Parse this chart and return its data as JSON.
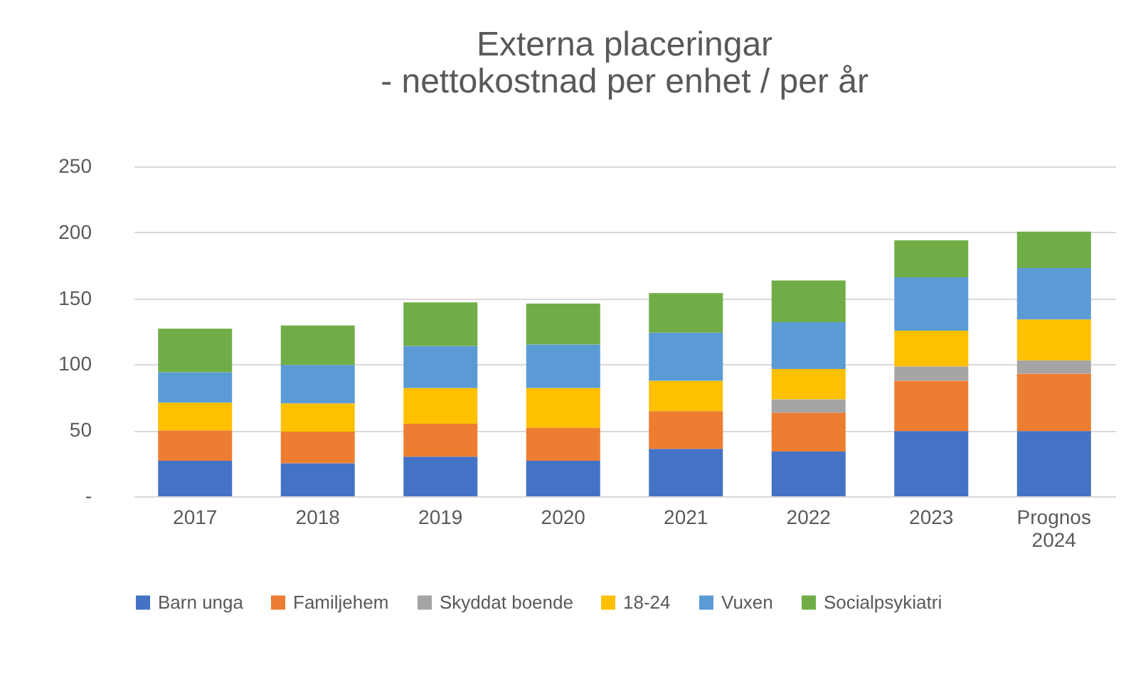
{
  "chart_data": {
    "type": "bar",
    "stacked": true,
    "title": "Externa placeringar\n- nettokostnad per enhet / per år",
    "categories": [
      "2017",
      "2018",
      "2019",
      "2020",
      "2021",
      "2022",
      "2023",
      "Prognos 2024"
    ],
    "series": [
      {
        "name": "Barn unga",
        "color": "#4472c4",
        "values": [
          27,
          25,
          30,
          27,
          36,
          34,
          49.5,
          49.5
        ]
      },
      {
        "name": "Familjehem",
        "color": "#ed7d31",
        "values": [
          23,
          24,
          25,
          25,
          28.5,
          29.5,
          38,
          43.5
        ]
      },
      {
        "name": "Skyddat boende",
        "color": "#a5a5a5",
        "values": [
          null,
          null,
          null,
          null,
          null,
          10,
          11,
          10
        ]
      },
      {
        "name": "18-24",
        "color": "#ffc000",
        "values": [
          21,
          21.5,
          27,
          30,
          23,
          23,
          27,
          31
        ]
      },
      {
        "name": "Vuxen",
        "color": "#5b9bd5",
        "values": [
          23,
          29,
          32,
          33,
          36.5,
          35.5,
          40.5,
          39
        ]
      },
      {
        "name": "Socialpsykiatri",
        "color": "#70ad47",
        "values": [
          33,
          30,
          33,
          31,
          30,
          31.5,
          28,
          27.5
        ]
      }
    ],
    "ylim": [
      0,
      250
    ],
    "yticks": [
      {
        "value": 0,
        "label": "-"
      },
      50,
      100,
      150,
      200,
      250
    ],
    "grid": "y",
    "legend": "bottom"
  }
}
